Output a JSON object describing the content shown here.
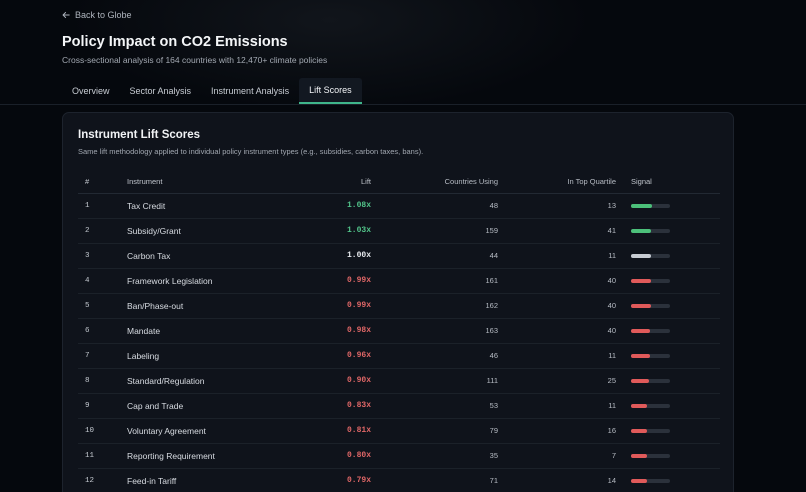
{
  "nav": {
    "back_label": "Back to Globe"
  },
  "header": {
    "title": "Policy Impact on CO2 Emissions",
    "subtitle": "Cross-sectional analysis of 164 countries with 12,470+ climate policies"
  },
  "tabs": [
    {
      "label": "Overview",
      "active": false
    },
    {
      "label": "Sector Analysis",
      "active": false
    },
    {
      "label": "Instrument Analysis",
      "active": false
    },
    {
      "label": "Lift Scores",
      "active": true
    }
  ],
  "card": {
    "title": "Instrument Lift Scores",
    "description": "Same lift methodology applied to individual policy instrument types (e.g., subsidies, carbon taxes, bans)."
  },
  "table": {
    "headers": {
      "rank": "#",
      "instrument": "Instrument",
      "lift": "Lift",
      "countries": "Countries Using",
      "top_quartile": "In Top Quartile",
      "signal": "Signal"
    },
    "rows": [
      {
        "rank": "1",
        "instrument": "Tax Credit",
        "lift": "1.08x",
        "countries": "48",
        "top_quartile": "13",
        "signal": 0.54,
        "status": "positive"
      },
      {
        "rank": "2",
        "instrument": "Subsidy/Grant",
        "lift": "1.03x",
        "countries": "159",
        "top_quartile": "41",
        "signal": 0.52,
        "status": "positive"
      },
      {
        "rank": "3",
        "instrument": "Carbon Tax",
        "lift": "1.00x",
        "countries": "44",
        "top_quartile": "11",
        "signal": 0.5,
        "status": "neutral"
      },
      {
        "rank": "4",
        "instrument": "Framework Legislation",
        "lift": "0.99x",
        "countries": "161",
        "top_quartile": "40",
        "signal": 0.5,
        "status": "negative"
      },
      {
        "rank": "5",
        "instrument": "Ban/Phase-out",
        "lift": "0.99x",
        "countries": "162",
        "top_quartile": "40",
        "signal": 0.5,
        "status": "negative"
      },
      {
        "rank": "6",
        "instrument": "Mandate",
        "lift": "0.98x",
        "countries": "163",
        "top_quartile": "40",
        "signal": 0.49,
        "status": "negative"
      },
      {
        "rank": "7",
        "instrument": "Labeling",
        "lift": "0.96x",
        "countries": "46",
        "top_quartile": "11",
        "signal": 0.48,
        "status": "negative"
      },
      {
        "rank": "8",
        "instrument": "Standard/Regulation",
        "lift": "0.90x",
        "countries": "111",
        "top_quartile": "25",
        "signal": 0.45,
        "status": "negative"
      },
      {
        "rank": "9",
        "instrument": "Cap and Trade",
        "lift": "0.83x",
        "countries": "53",
        "top_quartile": "11",
        "signal": 0.42,
        "status": "negative"
      },
      {
        "rank": "10",
        "instrument": "Voluntary Agreement",
        "lift": "0.81x",
        "countries": "79",
        "top_quartile": "16",
        "signal": 0.41,
        "status": "negative"
      },
      {
        "rank": "11",
        "instrument": "Reporting Requirement",
        "lift": "0.80x",
        "countries": "35",
        "top_quartile": "7",
        "signal": 0.4,
        "status": "negative"
      },
      {
        "rank": "12",
        "instrument": "Feed-in Tariff",
        "lift": "0.79x",
        "countries": "71",
        "top_quartile": "14",
        "signal": 0.4,
        "status": "negative"
      }
    ]
  },
  "colors": {
    "positive": "#4cc07a",
    "neutral": "#c7ccd3",
    "negative": "#e05a5a",
    "lift_positive_text": "#52c48a",
    "lift_neutral_text": "#e8ebef",
    "lift_negative_text": "#e06767",
    "accent": "#3fb68b"
  }
}
